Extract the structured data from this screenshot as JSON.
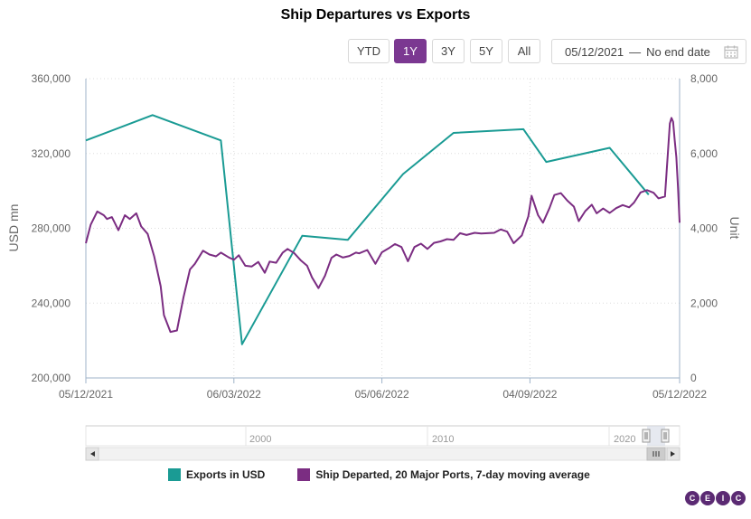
{
  "title": "Ship Departures vs Exports",
  "range_buttons": [
    "YTD",
    "1Y",
    "3Y",
    "5Y",
    "All"
  ],
  "active_range": "1Y",
  "date_range": {
    "from": "05/12/2021",
    "separator": "—",
    "to": "No end date"
  },
  "icons": {
    "calendar": "calendar-icon",
    "scroll_left": "arrow-left-icon",
    "scroll_right": "arrow-right-icon"
  },
  "colors": {
    "exports": "#1a9b94",
    "ships": "#7b2d82",
    "accent": "#7b3891",
    "logo": "#5b2a73"
  },
  "legend": [
    "Exports in USD",
    "Ship Departed, 20 Major Ports, 7-day moving average"
  ],
  "navigator": {
    "labels": [
      "2000",
      "2010",
      "2020"
    ]
  },
  "logo_letters": [
    "C",
    "E",
    "I",
    "C"
  ],
  "chart_data": {
    "type": "line",
    "title": "Ship Departures vs Exports",
    "x_ticks": [
      "05/12/2021",
      "06/03/2022",
      "05/06/2022",
      "04/09/2022",
      "05/12/2022"
    ],
    "y_left": {
      "label": "USD mn",
      "ticks": [
        "200,000",
        "240,000",
        "280,000",
        "320,000",
        "360,000"
      ],
      "range": [
        200000,
        360000
      ]
    },
    "y_right": {
      "label": "Unit",
      "ticks": [
        "0",
        "2,000",
        "4,000",
        "6,000",
        "8,000"
      ],
      "range": [
        0,
        8000
      ]
    },
    "grid": true,
    "legend_position": "bottom",
    "series": [
      {
        "name": "Exports in USD",
        "axis": "left",
        "x": [
          "2021-12-05",
          "2022-01-15",
          "2022-02-26",
          "2022-03-11",
          "2022-04-17",
          "2022-05-15",
          "2022-06-18",
          "2022-07-19",
          "2022-08-31",
          "2022-09-14",
          "2022-10-23",
          "2022-11-16"
        ],
        "y": [
          327000,
          340500,
          327000,
          218000,
          276000,
          273800,
          309000,
          331000,
          333000,
          315500,
          323000,
          298000
        ]
      },
      {
        "name": "Ship Departed, 20 Major Ports, 7-day moving average",
        "axis": "right",
        "x": [
          "2021-12-05",
          "2021-12-08",
          "2021-12-12",
          "2021-12-16",
          "2021-12-18",
          "2021-12-21",
          "2021-12-25",
          "2021-12-29",
          "2022-01-01",
          "2022-01-05",
          "2022-01-08",
          "2022-01-12",
          "2022-01-16",
          "2022-01-20",
          "2022-01-22",
          "2022-01-26",
          "2022-01-30",
          "2022-02-03",
          "2022-02-07",
          "2022-02-10",
          "2022-02-15",
          "2022-02-19",
          "2022-02-23",
          "2022-02-26",
          "2022-03-03",
          "2022-03-06",
          "2022-03-09",
          "2022-03-13",
          "2022-03-17",
          "2022-03-21",
          "2022-03-25",
          "2022-03-28",
          "2022-04-01",
          "2022-04-05",
          "2022-04-08",
          "2022-04-12",
          "2022-04-16",
          "2022-04-20",
          "2022-04-23",
          "2022-04-27",
          "2022-05-01",
          "2022-05-05",
          "2022-05-08",
          "2022-05-12",
          "2022-05-16",
          "2022-05-20",
          "2022-05-22",
          "2022-05-27",
          "2022-06-01",
          "2022-06-05",
          "2022-06-09",
          "2022-06-13",
          "2022-06-17",
          "2022-06-21",
          "2022-06-25",
          "2022-06-29",
          "2022-07-03",
          "2022-07-07",
          "2022-07-11",
          "2022-07-15",
          "2022-07-19",
          "2022-07-23",
          "2022-07-27",
          "2022-08-01",
          "2022-08-05",
          "2022-08-09",
          "2022-08-13",
          "2022-08-17",
          "2022-08-21",
          "2022-08-25",
          "2022-08-30",
          "2022-09-03",
          "2022-09-05",
          "2022-09-09",
          "2022-09-12",
          "2022-09-16",
          "2022-09-19",
          "2022-09-23",
          "2022-09-27",
          "2022-10-01",
          "2022-10-04",
          "2022-10-08",
          "2022-10-12",
          "2022-10-15",
          "2022-10-19",
          "2022-10-23",
          "2022-10-27",
          "2022-10-31",
          "2022-11-04",
          "2022-11-07",
          "2022-11-11",
          "2022-11-15",
          "2022-11-19",
          "2022-11-22",
          "2022-11-26",
          "2022-11-29",
          "2022-11-30",
          "2022-12-01",
          "2022-12-02",
          "2022-12-03",
          "2022-12-04",
          "2022-12-05"
        ],
        "y": [
          3600,
          4100,
          4450,
          4350,
          4250,
          4300,
          3950,
          4350,
          4250,
          4400,
          4050,
          3850,
          3250,
          2450,
          1680,
          1230,
          1270,
          2150,
          2900,
          3050,
          3400,
          3300,
          3250,
          3350,
          3220,
          3160,
          3280,
          3000,
          2980,
          3100,
          2810,
          3110,
          3080,
          3350,
          3450,
          3340,
          3150,
          3000,
          2690,
          2400,
          2730,
          3210,
          3300,
          3220,
          3260,
          3350,
          3330,
          3420,
          3050,
          3360,
          3460,
          3580,
          3500,
          3120,
          3500,
          3590,
          3450,
          3610,
          3650,
          3710,
          3690,
          3870,
          3820,
          3880,
          3860,
          3870,
          3880,
          3970,
          3910,
          3600,
          3810,
          4320,
          4870,
          4350,
          4150,
          4540,
          4890,
          4940,
          4740,
          4580,
          4190,
          4460,
          4630,
          4400,
          4530,
          4410,
          4540,
          4620,
          4560,
          4690,
          4960,
          5020,
          4950,
          4800,
          4850,
          6800,
          6950,
          6850,
          6350,
          5900,
          5100,
          4150
        ]
      }
    ]
  }
}
